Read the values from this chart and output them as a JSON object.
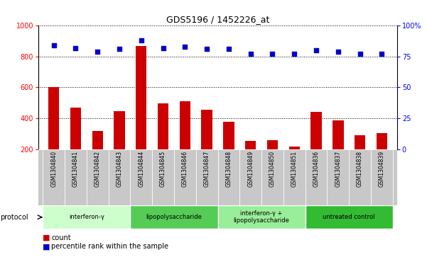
{
  "title": "GDS5196 / 1452226_at",
  "samples": [
    "GSM1304840",
    "GSM1304841",
    "GSM1304842",
    "GSM1304843",
    "GSM1304844",
    "GSM1304845",
    "GSM1304846",
    "GSM1304847",
    "GSM1304848",
    "GSM1304849",
    "GSM1304850",
    "GSM1304851",
    "GSM1304836",
    "GSM1304837",
    "GSM1304838",
    "GSM1304839"
  ],
  "counts": [
    600,
    470,
    315,
    445,
    870,
    495,
    510,
    455,
    375,
    252,
    258,
    215,
    440,
    385,
    288,
    305
  ],
  "percentiles": [
    84,
    82,
    79,
    81,
    88,
    82,
    83,
    81,
    81,
    77,
    77,
    77,
    80,
    79,
    77,
    77
  ],
  "ylim_left": [
    200,
    1000
  ],
  "ylim_right": [
    0,
    100
  ],
  "yticks_left": [
    200,
    400,
    600,
    800,
    1000
  ],
  "yticks_right": [
    0,
    25,
    50,
    75,
    100
  ],
  "bar_color": "#cc0000",
  "dot_color": "#0000cc",
  "bg_color": "#ffffff",
  "tick_area_color": "#c8c8c8",
  "groups": [
    {
      "label": "interferon-γ",
      "start": 0,
      "end": 4,
      "color": "#ccffcc"
    },
    {
      "label": "lipopolysaccharide",
      "start": 4,
      "end": 8,
      "color": "#55cc55"
    },
    {
      "label": "interferon-γ +\nlipopolysaccharide",
      "start": 8,
      "end": 12,
      "color": "#99ee99"
    },
    {
      "label": "untreated control",
      "start": 12,
      "end": 16,
      "color": "#33bb33"
    }
  ],
  "legend_count_label": "count",
  "legend_pct_label": "percentile rank within the sample"
}
